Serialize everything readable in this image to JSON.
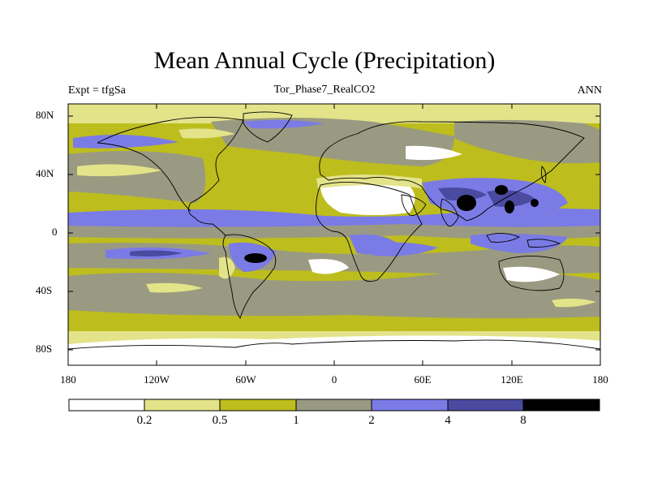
{
  "figure": {
    "title": "Mean Annual Cycle (Precipitation)",
    "left_subtitle": "Expt = tfgSa",
    "center_subtitle": "Tor_Phase7_RealCO2",
    "right_subtitle": "ANN"
  },
  "axes": {
    "y_ticks": [
      "80N",
      "40N",
      "0",
      "40S",
      "80S"
    ],
    "x_ticks": [
      "180",
      "120W",
      "60W",
      "0",
      "60E",
      "120E",
      "180"
    ]
  },
  "colorbar": {
    "labels": [
      "0.2",
      "0.5",
      "1",
      "2",
      "4",
      "8"
    ],
    "colors": [
      "#ffffff",
      "#e3e38a",
      "#bdbd1e",
      "#9a9a82",
      "#7b7be6",
      "#4a4aa0",
      "#000000"
    ]
  },
  "chart_data": {
    "type": "heatmap",
    "title": "Mean Annual Cycle (Precipitation)",
    "variable": "Precipitation",
    "experiment": "tfgSa",
    "run": "Tor_Phase7_RealCO2",
    "season": "ANN",
    "xlim": [
      -180,
      180
    ],
    "ylim": [
      -90,
      90
    ],
    "levels": [
      0.2,
      0.5,
      1,
      2,
      4,
      8
    ]
  }
}
